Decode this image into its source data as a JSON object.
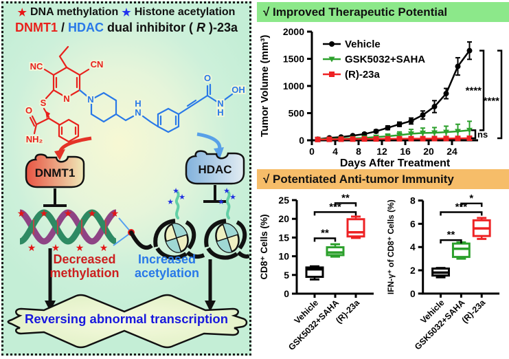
{
  "icons": {
    "methyl_star": "★",
    "acetyl_star": "★",
    "check": "√"
  },
  "colors": {
    "red": "#e8211c",
    "blue": "#2878e8",
    "green_series": "#2ca02c",
    "red_series": "#ee2224",
    "header1_bg": "#8ce88a",
    "header2_bg": "#f6bd69",
    "conclusion_blue": "#1818dd"
  },
  "left_panel": {
    "legend": {
      "item1": "DNA methylation",
      "item2": "Histone acetylation"
    },
    "title": {
      "p1": "DNMT1",
      "p2": "/",
      "p3": "HDAC",
      "p4": " dual inhibitor (",
      "p5": "R",
      "p6": ")-23a"
    },
    "molecule": {
      "nc": "NC",
      "cn": "CN",
      "s": "S",
      "n_pyridine": "N",
      "o_amide": "O",
      "nh2": "NH₂",
      "n_piperidine": "N",
      "h_amine": "H",
      "n_amine": "N",
      "o_carbonyl": "O",
      "n_hydroxamate": "N",
      "h_hydroxamate": "H",
      "oh": "OH"
    },
    "enzymes": {
      "dnmt1": "DNMT1",
      "hdac": "HDAC"
    },
    "effects": {
      "left1": "Decreased",
      "left2": "methylation",
      "right1": "Increased",
      "right2": "acetylation"
    },
    "conclusion": "Reversing abnormal transcription"
  },
  "right_panel": {
    "header1": "√ Improved Therapeutic Potential",
    "header2": "√ Potentiated Anti-tumor Immunity"
  },
  "chart_data": [
    {
      "type": "line",
      "title": "Improved Therapeutic Potential",
      "xlabel": "Days After Treatment",
      "ylabel": "Tumor Volume (mm³)",
      "xlim": [
        0,
        28
      ],
      "ylim": [
        0,
        2000
      ],
      "xticks": [
        0,
        4,
        8,
        12,
        16,
        20,
        24
      ],
      "yticks": [
        0,
        500,
        1000,
        1500,
        2000
      ],
      "legend_position": "top-left",
      "x": [
        1,
        3,
        5,
        7,
        9,
        11,
        13,
        15,
        17,
        19,
        21,
        23,
        25,
        27
      ],
      "series": [
        {
          "name": "Vehicle",
          "color": "#000000",
          "marker": "circle",
          "values": [
            20,
            45,
            60,
            85,
            115,
            165,
            230,
            295,
            355,
            465,
            620,
            860,
            1360,
            1650
          ],
          "errors": [
            10,
            12,
            15,
            18,
            22,
            28,
            35,
            40,
            55,
            75,
            110,
            95,
            160,
            160
          ]
        },
        {
          "name": "GSK5032+SAHA",
          "color": "#2ca02c",
          "marker": "triangle-down",
          "values": [
            20,
            25,
            30,
            35,
            45,
            60,
            75,
            95,
            120,
            135,
            140,
            150,
            165,
            185
          ],
          "errors": [
            6,
            6,
            8,
            10,
            12,
            18,
            40,
            60,
            80,
            90,
            95,
            110,
            130,
            165
          ]
        },
        {
          "name": "(R)-23a",
          "color": "#ee2224",
          "marker": "square",
          "values": [
            15,
            18,
            20,
            22,
            24,
            25,
            27,
            28,
            30,
            30,
            32,
            33,
            35,
            38
          ],
          "errors": [
            4,
            4,
            5,
            5,
            5,
            6,
            6,
            6,
            7,
            7,
            7,
            8,
            8,
            8
          ]
        }
      ],
      "annotations": [
        {
          "groups": [
            "Vehicle",
            "GSK5032+SAHA"
          ],
          "label": "****"
        },
        {
          "groups": [
            "Vehicle",
            "(R)-23a"
          ],
          "label": "****"
        },
        {
          "groups": [
            "GSK5032+SAHA",
            "(R)-23a"
          ],
          "label": "ns"
        }
      ]
    },
    {
      "type": "box",
      "ylabel": "CD8⁺ Cells (%)",
      "ylim": [
        0,
        25
      ],
      "yticks": [
        0,
        5,
        10,
        15,
        20,
        25
      ],
      "categories": [
        "Vehicle",
        "GSK5032+SAHA",
        "(R)-23a"
      ],
      "colors": [
        "#000000",
        "#2ca02c",
        "#ee2224"
      ],
      "boxes": [
        {
          "whisker_low": 3.8,
          "q1": 4.5,
          "median": 6.5,
          "q3": 7.0,
          "whisker_high": 7.3
        },
        {
          "whisker_low": 9.9,
          "q1": 10.3,
          "median": 11.0,
          "q3": 12.4,
          "whisker_high": 13.2
        },
        {
          "whisker_low": 14.9,
          "q1": 15.3,
          "median": 16.4,
          "q3": 19.9,
          "whisker_high": 20.6
        }
      ],
      "sig": [
        {
          "a": 0,
          "b": 1,
          "y": 14.8,
          "label": "**"
        },
        {
          "a": 0,
          "b": 2,
          "y": 21.8,
          "label": "***"
        },
        {
          "a": 1,
          "b": 2,
          "y": 24.2,
          "label": "**"
        }
      ]
    },
    {
      "type": "box",
      "ylabel": "IFN-γ⁺ of CD8⁺ Cells (%)",
      "ylim": [
        0,
        8
      ],
      "yticks": [
        0,
        2,
        4,
        6,
        8
      ],
      "categories": [
        "Vehicle",
        "GSK5032+SAHA",
        "(R)-23a"
      ],
      "colors": [
        "#000000",
        "#2ca02c",
        "#ee2224"
      ],
      "boxes": [
        {
          "whisker_low": 1.4,
          "q1": 1.55,
          "median": 1.8,
          "q3": 2.15,
          "whisker_high": 2.2
        },
        {
          "whisker_low": 3.0,
          "q1": 3.15,
          "median": 3.85,
          "q3": 4.3,
          "whisker_high": 4.4
        },
        {
          "whisker_low": 4.7,
          "q1": 4.95,
          "median": 5.6,
          "q3": 6.3,
          "whisker_high": 6.5
        }
      ],
      "sig": [
        {
          "a": 0,
          "b": 1,
          "y": 4.6,
          "label": "**"
        },
        {
          "a": 0,
          "b": 2,
          "y": 7.0,
          "label": "***"
        },
        {
          "a": 1,
          "b": 2,
          "y": 7.75,
          "label": "*"
        }
      ]
    }
  ]
}
